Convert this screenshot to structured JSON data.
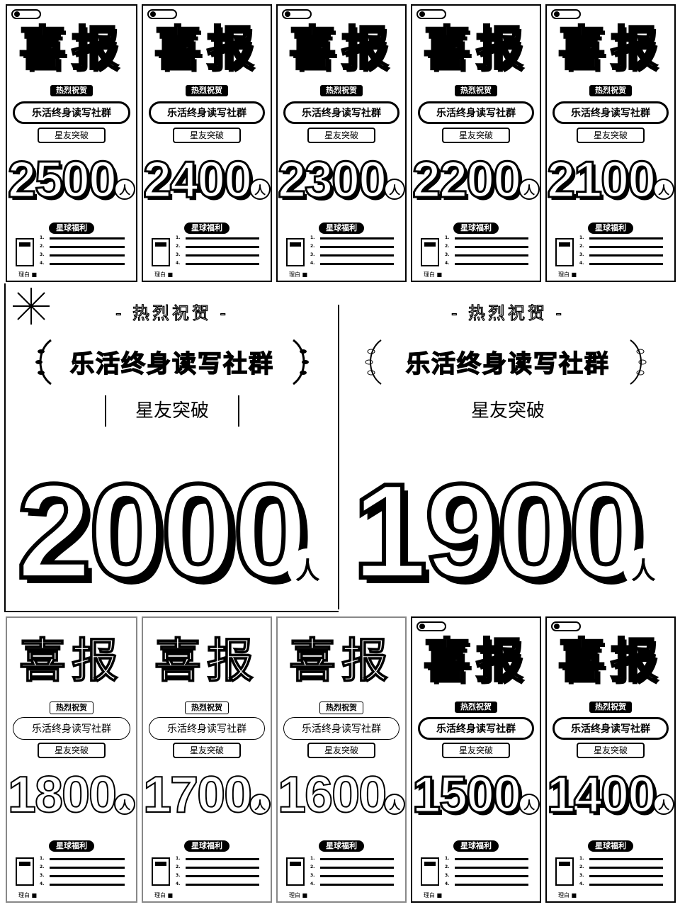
{
  "poster_common": {
    "title": "喜报",
    "congrats": "热烈祝贺",
    "community": "乐活终身读写社群",
    "star": "星友突破",
    "unit": "人",
    "perk_badge": "星球福利",
    "perks": [
      "1.",
      "2.",
      "3.",
      "4."
    ],
    "signature": "理白 ■"
  },
  "big_common": {
    "congrats": "- 热烈祝贺 -",
    "community": "乐活终身读写社群",
    "star": "星友突破",
    "unit": "人"
  },
  "top_row": [
    {
      "count": "2500"
    },
    {
      "count": "2400"
    },
    {
      "count": "2300"
    },
    {
      "count": "2200"
    },
    {
      "count": "2100"
    }
  ],
  "middle_row": [
    {
      "count": "2000"
    },
    {
      "count": "1900"
    }
  ],
  "bottom_row": [
    {
      "count": "1800"
    },
    {
      "count": "1700"
    },
    {
      "count": "1600"
    },
    {
      "count": "1500"
    },
    {
      "count": "1400"
    }
  ]
}
